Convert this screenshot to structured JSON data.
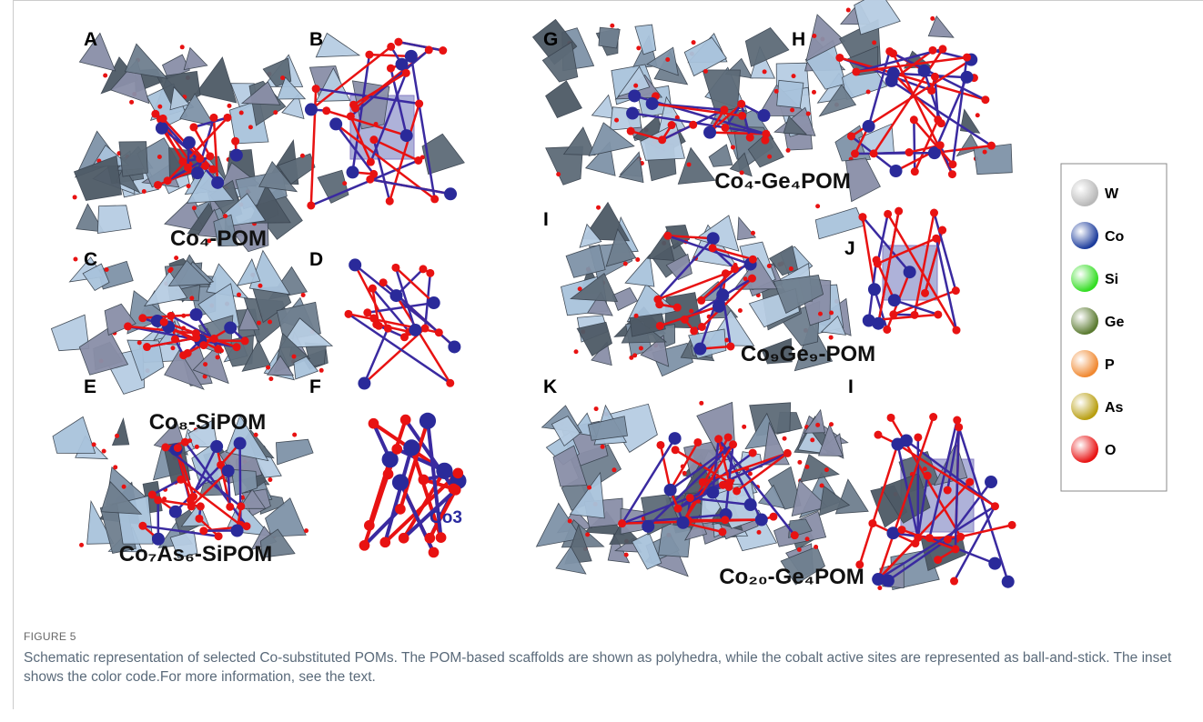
{
  "panels": [
    {
      "letter": "A",
      "label": "Co₄-POM"
    },
    {
      "letter": "B"
    },
    {
      "letter": "G",
      "label": "Co₄-Ge₄POM"
    },
    {
      "letter": "H"
    },
    {
      "letter": "C",
      "label": "Co₈-SiPOM"
    },
    {
      "letter": "D"
    },
    {
      "letter": "I",
      "label": "Co₉Ge₉-POM"
    },
    {
      "letter": "J"
    },
    {
      "letter": "E",
      "label": "Co₇As₆-SiPOM"
    },
    {
      "letter": "F",
      "annotation": "Co3"
    },
    {
      "letter": "K",
      "label": "Co₂₀-Ge₄POM"
    },
    {
      "letter": "I"
    }
  ],
  "legend": {
    "items": [
      {
        "label": "W",
        "color": "#b8b8b8"
      },
      {
        "label": "Co",
        "color": "#1c3c9c"
      },
      {
        "label": "Si",
        "color": "#33dd22"
      },
      {
        "label": "Ge",
        "color": "#5a7a30"
      },
      {
        "label": "P",
        "color": "#f08830"
      },
      {
        "label": "As",
        "color": "#b89e10"
      },
      {
        "label": "O",
        "color": "#e81212"
      }
    ]
  },
  "caption": {
    "figure": "FIGURE 5",
    "text": "Schematic representation of selected Co-substituted POMs. The POM-based scaffolds are shown as polyhedra, while the cobalt active sites are represented as ball-and-stick. The inset shows the color code.For more information, see the text."
  }
}
